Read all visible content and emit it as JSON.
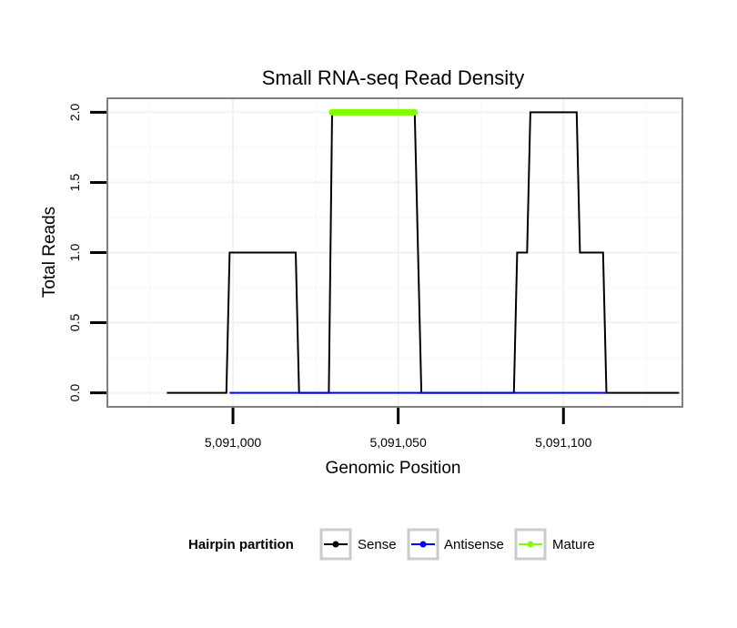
{
  "chart_data": {
    "type": "line",
    "title": "Small RNA-seq Read Density",
    "xlabel": "Genomic Position",
    "ylabel": "Total Reads",
    "xlim": [
      5090962,
      5091136
    ],
    "ylim": [
      -0.1,
      2.1
    ],
    "x_ticks": [
      5091000,
      5091050,
      5091100
    ],
    "x_tick_labels": [
      "5,091,000",
      "5,091,050",
      "5,091,100"
    ],
    "y_ticks": [
      0,
      0.5,
      1,
      1.5,
      2
    ],
    "y_tick_labels": [
      "0.0",
      "0.5",
      "1.0",
      "1.5",
      "2.0"
    ],
    "grid": true,
    "legend": {
      "title": "Hairpin partition",
      "position": "bottom",
      "entries": [
        "Sense",
        "Antisense",
        "Mature"
      ]
    },
    "series": [
      {
        "name": "Sense",
        "color": "#000000",
        "x": [
          5090980,
          5090998,
          5090999,
          5091019,
          5091020,
          5091029,
          5091030,
          5091055,
          5091057,
          5091085,
          5091086,
          5091089,
          5091090,
          5091104,
          5091105,
          5091112,
          5091113,
          5091135
        ],
        "y": [
          0,
          0,
          1,
          1,
          0,
          0,
          2,
          2,
          0,
          0,
          1,
          1,
          2,
          2,
          1,
          1,
          0,
          0
        ]
      },
      {
        "name": "Antisense",
        "color": "#0000ff",
        "x": [
          5090999,
          5091020,
          5091030,
          5091057,
          5091085,
          5091113
        ],
        "y": [
          0,
          0,
          0,
          0,
          0,
          0
        ]
      },
      {
        "name": "Mature",
        "color": "#7fff00",
        "x": [
          5091030,
          5091055
        ],
        "y": [
          2,
          2
        ]
      }
    ]
  }
}
